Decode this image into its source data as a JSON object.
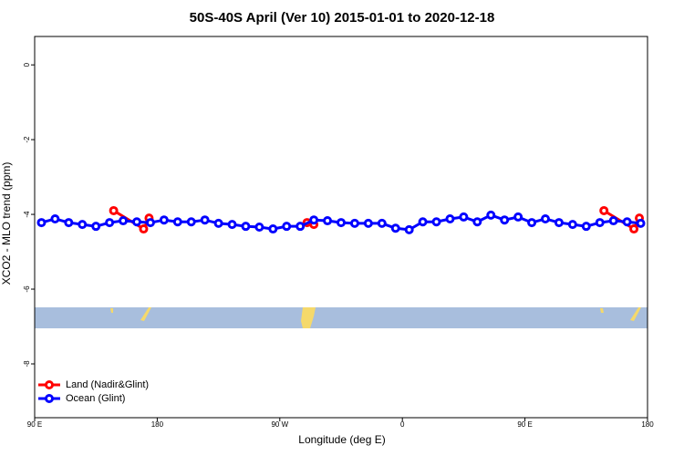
{
  "chart_data": {
    "type": "line",
    "title": "50S-40S April (Ver 10)   2015-01-01 to 2020-12-18",
    "x_label": "Longitude (deg E)",
    "y_label": "XCO2 - MLO trend (ppm)",
    "xlim": [
      90,
      540
    ],
    "ylim": [
      -9.44,
      0.76
    ],
    "xticks": [
      {
        "value": 90,
        "label": "90 E"
      },
      180,
      {
        "value": 270,
        "label": "90 W"
      },
      {
        "value": 360,
        "label": "0"
      },
      {
        "value": 450,
        "label": "90 E"
      },
      {
        "value": 540,
        "label": "180"
      }
    ],
    "yticks": [
      0,
      -2,
      -4,
      -6,
      -8
    ],
    "legend": "bottom-left",
    "series": [
      {
        "name": "Land (Nadir&Glint)",
        "color": "#ff0000",
        "x": [
          148,
          170,
          174,
          230,
          290,
          295,
          400,
          508,
          530,
          534
        ],
        "values": [
          -3.9,
          -4.39,
          -4.1,
          null,
          -4.22,
          -4.27,
          null,
          -3.9,
          -4.39,
          -4.1
        ]
      },
      {
        "name": "Ocean (Glint)",
        "color": "#0000ff",
        "x": [
          95,
          105,
          115,
          125,
          135,
          145,
          155,
          165,
          175,
          185,
          195,
          205,
          215,
          225,
          235,
          245,
          255,
          265,
          275,
          285,
          295,
          305,
          315,
          325,
          335,
          345,
          355,
          365,
          375,
          385,
          395,
          405,
          415,
          425,
          435,
          445,
          455,
          465,
          475,
          485,
          495,
          505,
          515,
          525,
          535
        ],
        "values": [
          -4.22,
          -4.12,
          -4.22,
          -4.27,
          -4.32,
          -4.22,
          -4.17,
          -4.2,
          -4.22,
          -4.15,
          -4.2,
          -4.2,
          -4.15,
          -4.24,
          -4.27,
          -4.32,
          -4.34,
          -4.39,
          -4.32,
          -4.32,
          -4.15,
          -4.17,
          -4.22,
          -4.24,
          -4.24,
          -4.24,
          -4.37,
          -4.41,
          -4.2,
          -4.2,
          -4.12,
          -4.07,
          -4.2,
          -4.02,
          -4.15,
          -4.07,
          -4.22,
          -4.12,
          -4.22,
          -4.27,
          -4.32,
          -4.22,
          -4.17,
          -4.2,
          -4.24
        ]
      }
    ]
  }
}
